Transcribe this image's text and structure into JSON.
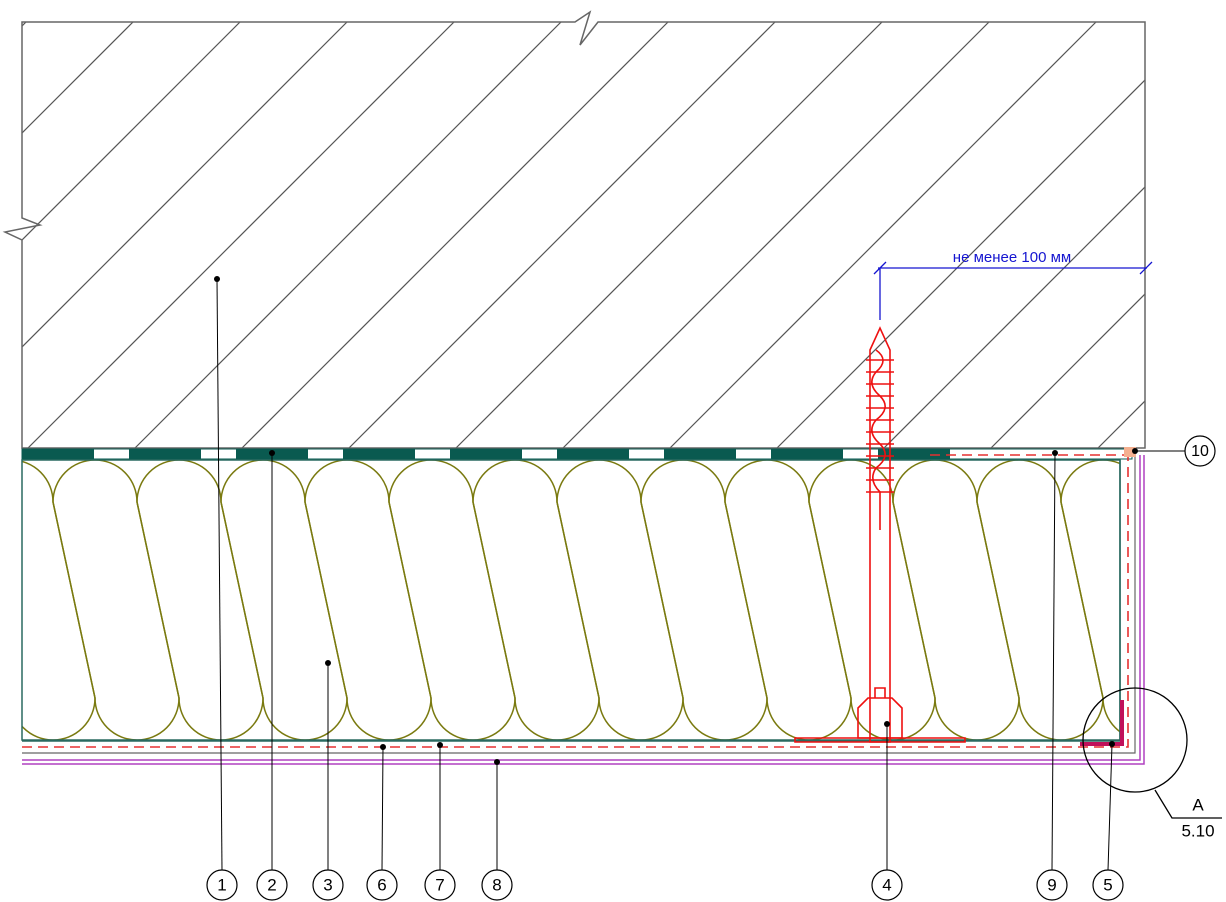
{
  "dimension": "не менее 100 мм",
  "callouts": [
    "1",
    "2",
    "3",
    "6",
    "7",
    "8",
    "4",
    "9",
    "5",
    "10"
  ],
  "section_mark": {
    "letter": "А",
    "sheet": "5.10"
  }
}
